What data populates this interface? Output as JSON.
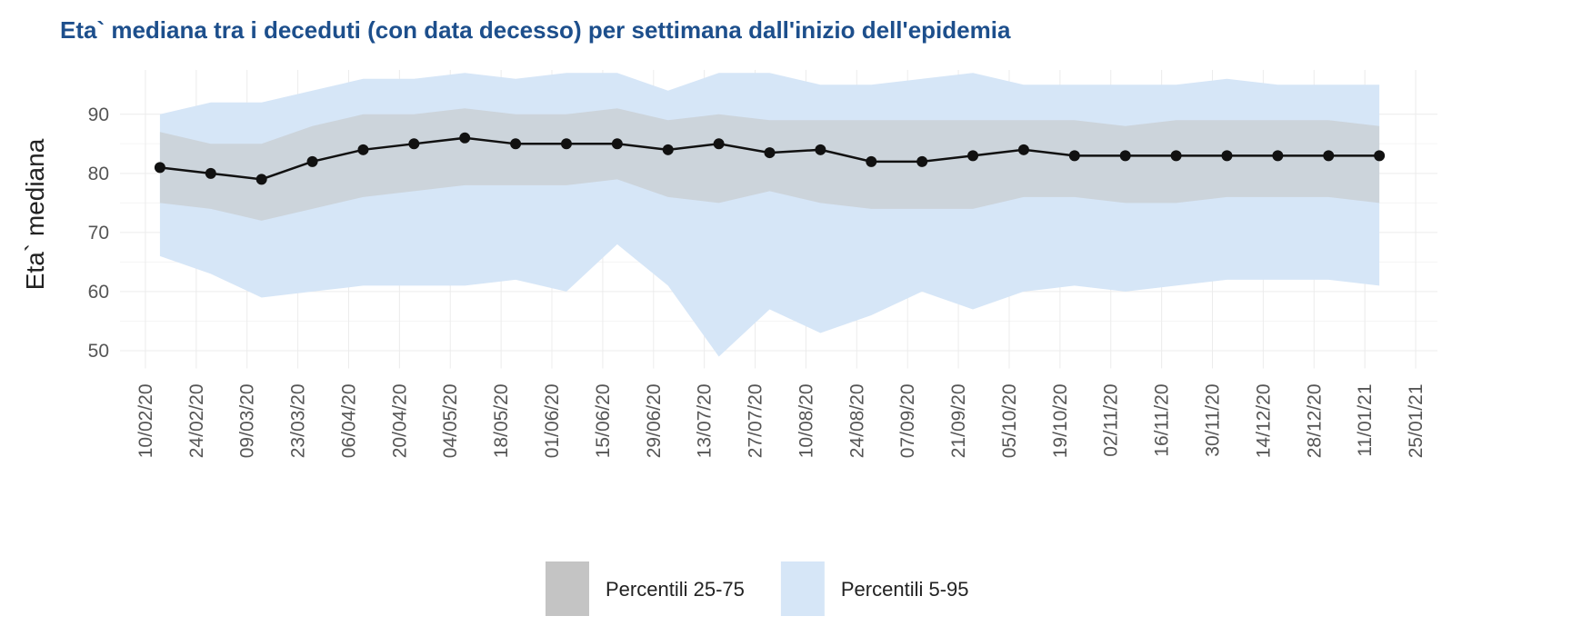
{
  "chart_data": {
    "type": "line",
    "title": "Eta` mediana tra i deceduti (con data decesso) per settimana dall'inizio dell'epidemia",
    "y_label": "Eta` mediana",
    "x": [
      "14/02/20",
      "28/02/20",
      "13/03/20",
      "27/03/20",
      "10/04/20",
      "24/04/20",
      "08/05/20",
      "22/05/20",
      "05/06/20",
      "19/06/20",
      "03/07/20",
      "17/07/20",
      "31/07/20",
      "14/08/20",
      "28/08/20",
      "11/09/20",
      "25/09/20",
      "09/10/20",
      "23/10/20",
      "06/11/20",
      "20/11/20",
      "04/12/20",
      "18/12/20",
      "01/01/21",
      "15/01/21"
    ],
    "median": {
      "color": "#111111",
      "values": [
        81,
        80,
        79,
        82,
        84,
        85,
        86,
        85,
        85,
        85,
        84,
        85,
        83.5,
        84,
        82,
        82,
        83,
        84,
        83,
        83,
        83,
        83,
        83,
        83,
        83
      ]
    },
    "bands": [
      {
        "name": "Percentili 5-95",
        "color": "#d6e6f7",
        "upper": [
          90,
          92,
          92,
          94,
          96,
          96,
          97,
          96,
          97,
          97,
          94,
          97,
          97,
          95,
          95,
          96,
          97,
          95,
          95,
          95,
          95,
          96,
          95,
          95,
          95
        ],
        "lower": [
          66,
          63,
          59,
          60,
          61,
          61,
          61,
          62,
          60,
          68,
          61,
          49,
          57,
          53,
          56,
          60,
          57,
          60,
          61,
          60,
          61,
          62,
          62,
          62,
          61
        ]
      },
      {
        "name": "Percentili 25-75",
        "color": "#c4c4c4",
        "upper": [
          87,
          85,
          85,
          88,
          90,
          90,
          91,
          90,
          90,
          91,
          89,
          90,
          89,
          89,
          89,
          89,
          89,
          89,
          89,
          88,
          89,
          89,
          89,
          89,
          88
        ],
        "lower": [
          75,
          74,
          72,
          74,
          76,
          77,
          78,
          78,
          78,
          79,
          76,
          75,
          77,
          75,
          74,
          74,
          74,
          76,
          76,
          75,
          75,
          76,
          76,
          76,
          75
        ]
      }
    ],
    "xlim": [
      "03/02/20",
      "31/01/21"
    ],
    "xticks": [
      "10/02/20",
      "24/02/20",
      "09/03/20",
      "23/03/20",
      "06/04/20",
      "20/04/20",
      "04/05/20",
      "18/05/20",
      "01/06/20",
      "15/06/20",
      "29/06/20",
      "13/07/20",
      "27/07/20",
      "10/08/20",
      "24/08/20",
      "07/09/20",
      "21/09/20",
      "05/10/20",
      "19/10/20",
      "02/11/20",
      "16/11/20",
      "30/11/20",
      "14/12/20",
      "28/12/20",
      "11/01/21",
      "25/01/21"
    ],
    "ylim": [
      47,
      97.5
    ],
    "yticks": [
      50,
      60,
      70,
      80,
      90
    ],
    "grid": true,
    "legend": "bottom"
  }
}
